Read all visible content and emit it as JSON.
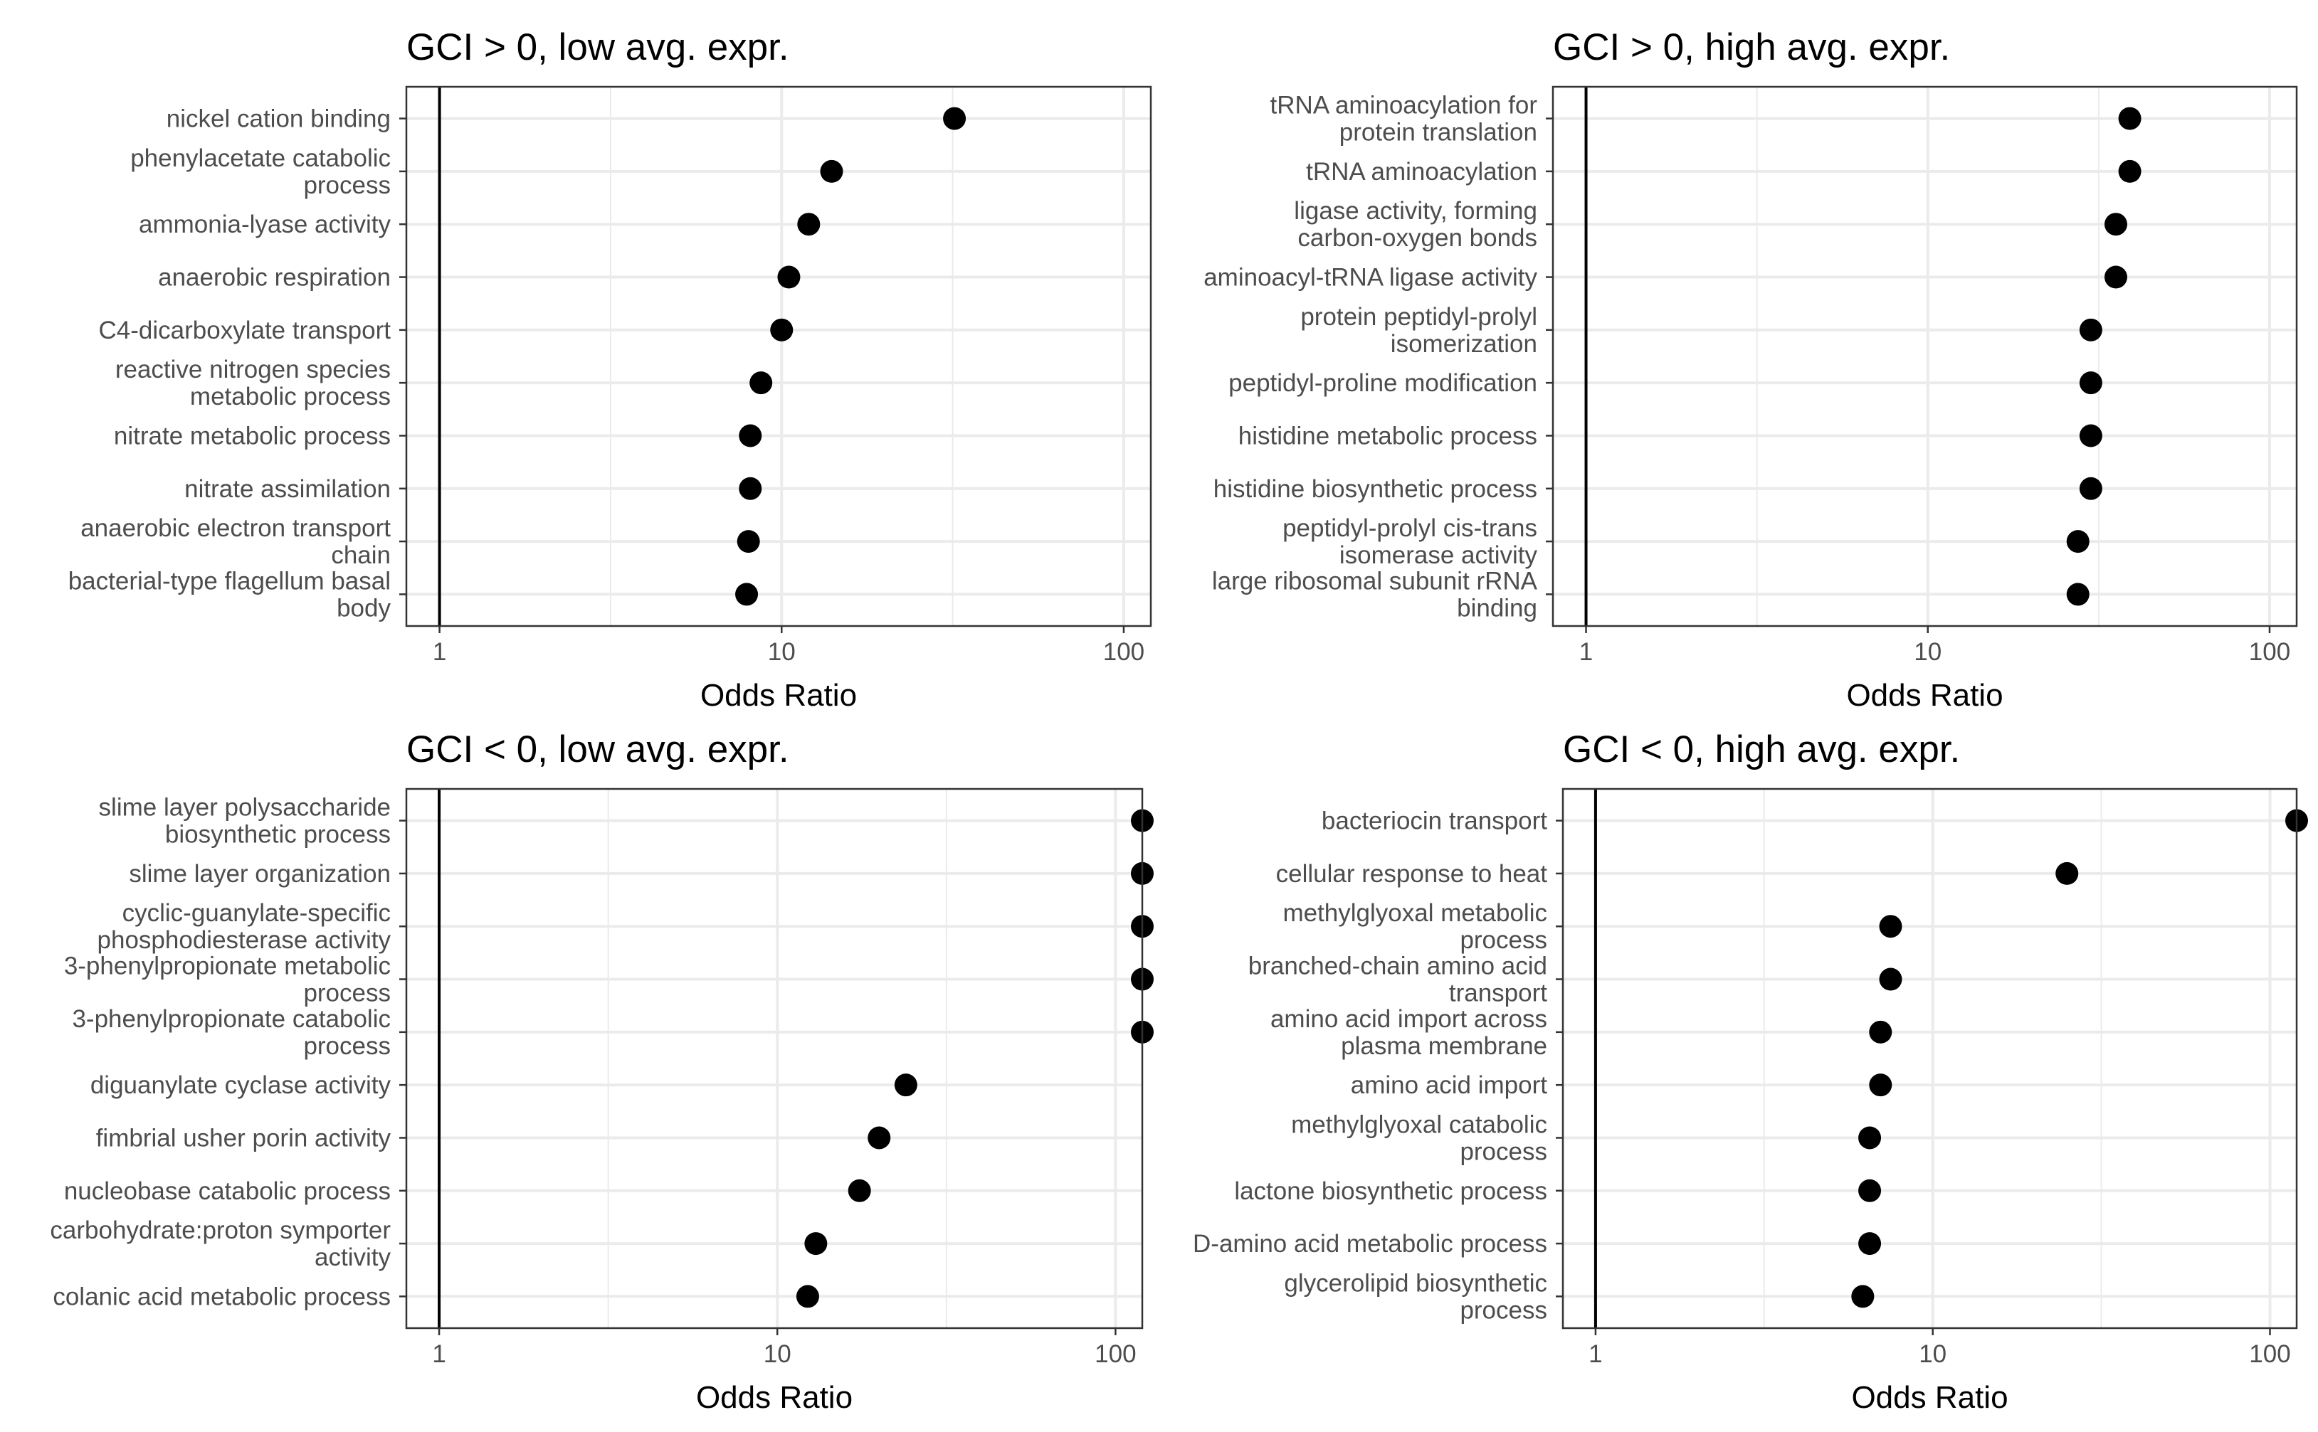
{
  "chart_data": [
    {
      "type": "dot",
      "title": "GCI > 0, low avg. expr.",
      "xlabel": "Odds Ratio",
      "ylabel": "",
      "xscale": "log10",
      "xlim": [
        0.8,
        120
      ],
      "xticks": [
        "1",
        "10",
        "100"
      ],
      "reference_line": 1,
      "grid": true,
      "categories": [
        "nickel cation binding",
        "phenylacetate catabolic\nprocess",
        "ammonia-lyase activity",
        "anaerobic respiration",
        "C4-dicarboxylate transport",
        "reactive nitrogen species\nmetabolic process",
        "nitrate metabolic process",
        "nitrate assimilation",
        "anaerobic electron transport\nchain",
        "bacterial-type flagellum basal\nbody"
      ],
      "values": [
        32,
        14,
        12,
        10.5,
        10,
        8.7,
        8.1,
        8.1,
        8,
        7.9
      ]
    },
    {
      "type": "dot",
      "title": "GCI > 0, high avg. expr.",
      "xlabel": "Odds Ratio",
      "ylabel": "",
      "xscale": "log10",
      "xlim": [
        0.8,
        120
      ],
      "xticks": [
        "1",
        "10",
        "100"
      ],
      "reference_line": 1,
      "grid": true,
      "categories": [
        "tRNA aminoacylation for\nprotein translation",
        "tRNA aminoacylation",
        "ligase activity, forming\ncarbon-oxygen bonds",
        "aminoacyl-tRNA ligase activity",
        "protein peptidyl-prolyl\nisomerization",
        "peptidyl-proline modification",
        "histidine metabolic process",
        "histidine biosynthetic process",
        "peptidyl-prolyl cis-trans\nisomerase activity",
        "large ribosomal subunit rRNA\nbinding"
      ],
      "values": [
        39,
        39,
        35.5,
        35.5,
        30,
        30,
        30,
        30,
        27.5,
        27.5
      ]
    },
    {
      "type": "dot",
      "title": "GCI < 0, low avg. expr.",
      "xlabel": "Odds Ratio",
      "ylabel": "",
      "xscale": "log10",
      "xlim": [
        0.8,
        120
      ],
      "xticks": [
        "1",
        "10",
        "100"
      ],
      "reference_line": 1,
      "grid": true,
      "categories": [
        "slime layer polysaccharide\nbiosynthetic process",
        "slime layer organization",
        "cyclic-guanylate-specific\nphosphodiesterase activity",
        "3-phenylpropionate metabolic\nprocess",
        "3-phenylpropionate catabolic\nprocess",
        "diguanylate cyclase activity",
        "fimbrial usher porin activity",
        "nucleobase catabolic process",
        "carbohydrate:proton symporter\nactivity",
        "colanic acid metabolic process"
      ],
      "values": [
        120,
        120,
        120,
        120,
        120,
        24,
        20,
        17.5,
        13,
        12.3
      ]
    },
    {
      "type": "dot",
      "title": "GCI < 0, high avg. expr.",
      "xlabel": "Odds Ratio",
      "ylabel": "",
      "xscale": "log10",
      "xlim": [
        0.8,
        120
      ],
      "xticks": [
        "1",
        "10",
        "100"
      ],
      "reference_line": 1,
      "grid": true,
      "categories": [
        "bacteriocin transport",
        "cellular response to heat",
        "methylglyoxal metabolic\nprocess",
        "branched-chain amino acid\ntransport",
        "amino acid import across\nplasma membrane",
        "amino acid import",
        "methylglyoxal catabolic\nprocess",
        "lactone biosynthetic process",
        "D-amino acid metabolic process",
        "glycerolipid biosynthetic\nprocess"
      ],
      "values": [
        120,
        25,
        7.5,
        7.5,
        7,
        7,
        6.5,
        6.5,
        6.5,
        6.2
      ]
    }
  ]
}
